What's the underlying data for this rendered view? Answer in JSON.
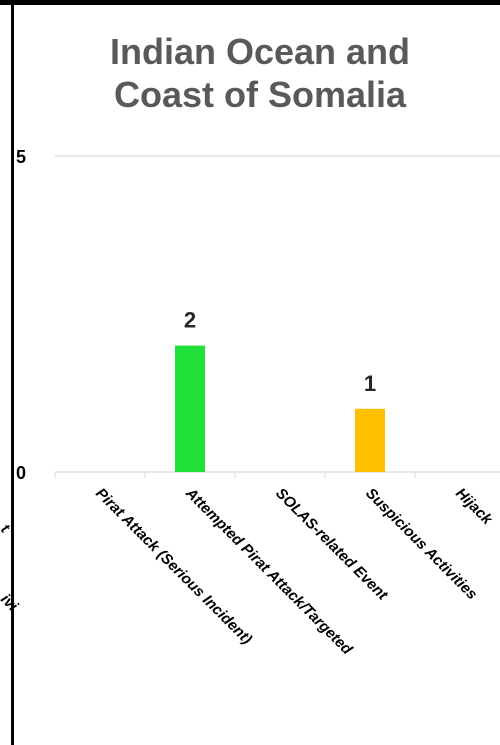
{
  "chart_data": {
    "type": "bar",
    "title_lines": [
      "Indian Ocean and",
      "Coast of Somalia"
    ],
    "categories": [
      "Pirat Attack (Serious Incident)",
      "Attempted Pirat Attack/Targeted",
      "SOLAS-related Event",
      "Suspicious Activities",
      "Hijack"
    ],
    "values": [
      0,
      2,
      0,
      1,
      0
    ],
    "data_labels": [
      "",
      "2",
      "",
      "1",
      ""
    ],
    "colors": [
      "#22E03A",
      "#22E03A",
      "#22E03A",
      "#FFC000",
      "#22E03A"
    ],
    "y_ticks": [
      "0",
      "5"
    ],
    "ylim": [
      0,
      5
    ],
    "grid": true,
    "partial_left_labels": [
      "t",
      "ivi"
    ]
  }
}
